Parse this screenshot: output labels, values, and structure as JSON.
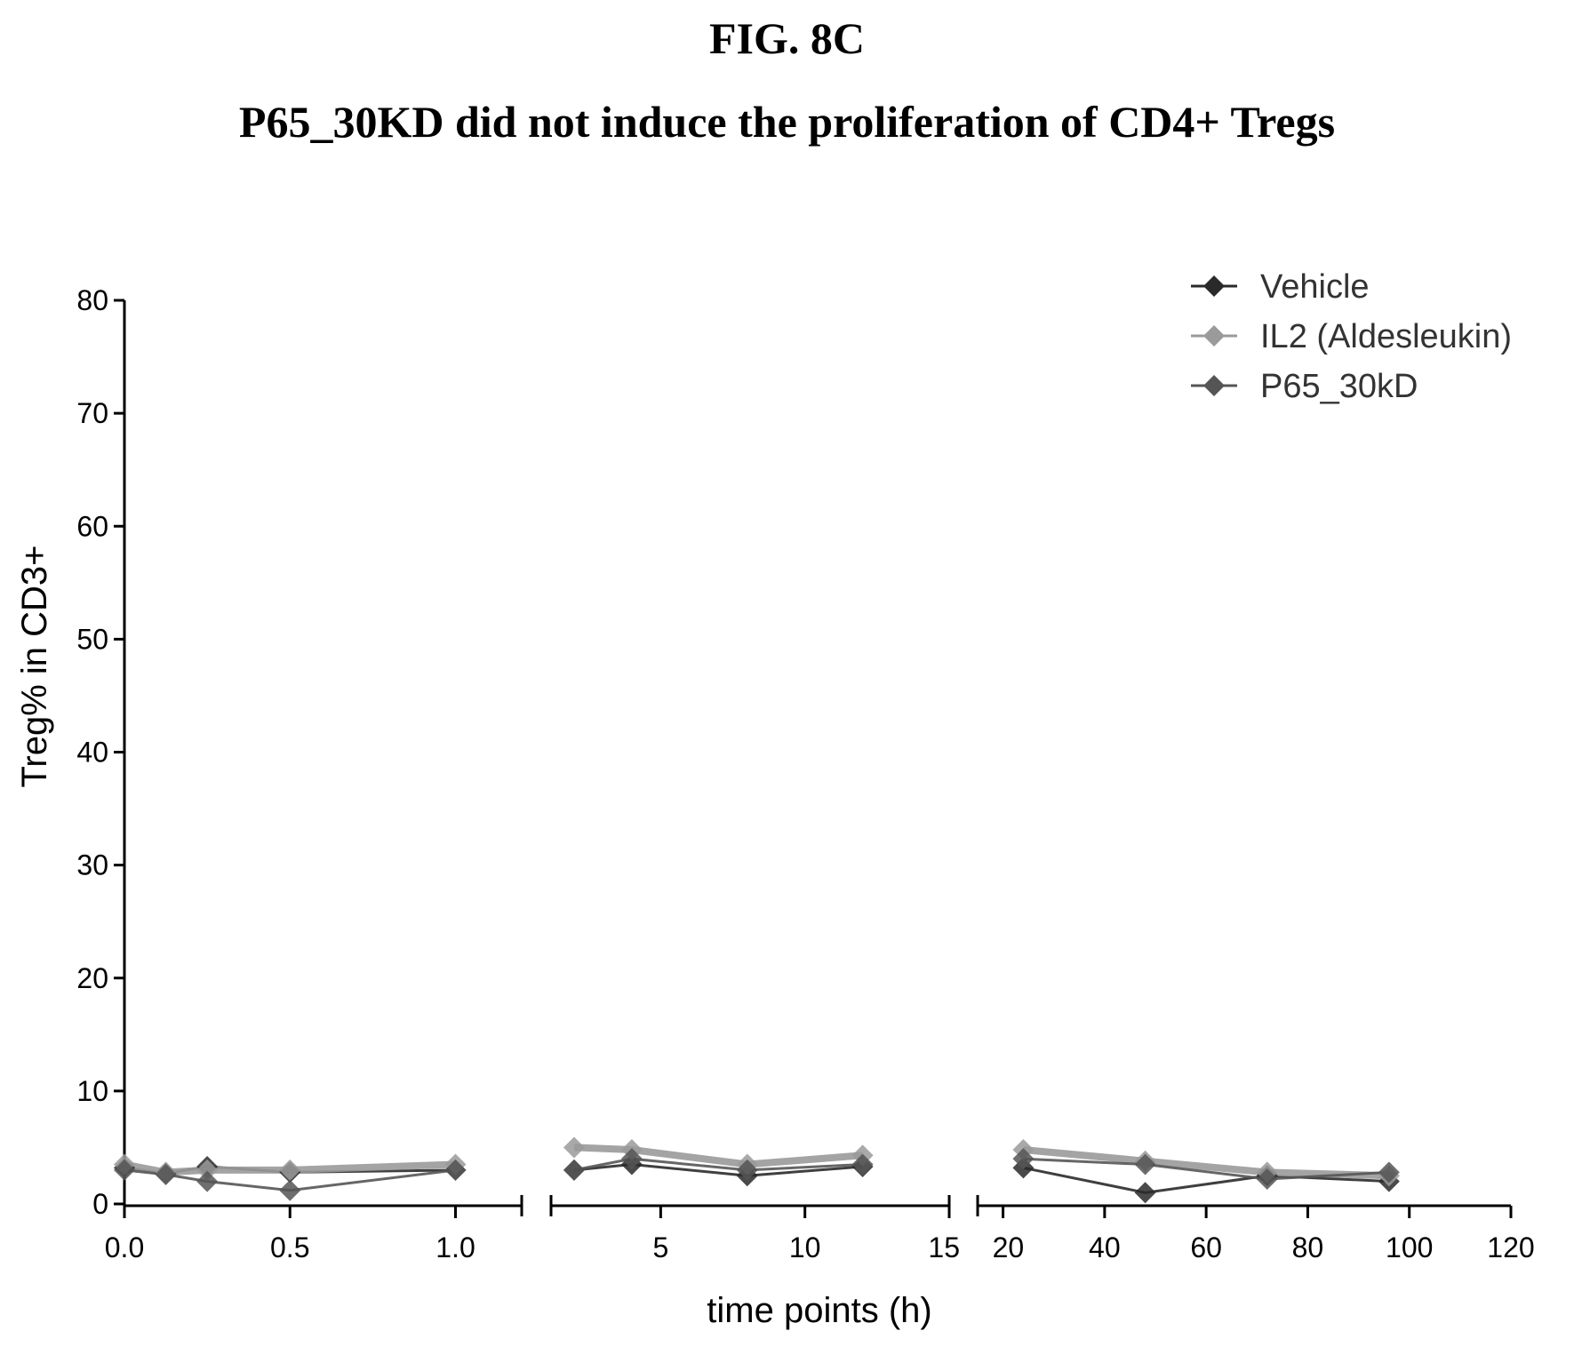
{
  "figure": {
    "label": "FIG. 8C",
    "title": "P65_30KD did not induce the proliferation of CD4+ Tregs"
  },
  "colors": {
    "Vehicle": "#2a2a2a",
    "IL2 (Aldesleukin)": "#9a9a9a",
    "P65_30kD": "#555555"
  },
  "chart_data": {
    "type": "line",
    "title": "",
    "xlabel": "time points (h)",
    "ylabel": "Treg% in CD3+",
    "ylim": [
      0,
      80
    ],
    "yticks": [
      0,
      10,
      20,
      30,
      40,
      50,
      60,
      70,
      80
    ],
    "x_axis": "segmented (broken axis)",
    "x_segments": [
      {
        "range": [
          0,
          1.2
        ],
        "ticks": [
          0.0,
          0.5,
          1.0
        ],
        "tick_labels": [
          "0.0",
          "0.5",
          "1.0"
        ]
      },
      {
        "range": [
          1.2,
          15
        ],
        "ticks": [
          5,
          10,
          15
        ],
        "tick_labels": [
          "5",
          "10",
          "15"
        ]
      },
      {
        "range": [
          15,
          120
        ],
        "ticks": [
          20,
          40,
          60,
          80,
          100,
          120
        ],
        "tick_labels": [
          "20",
          "40",
          "60",
          "80",
          "100",
          "120"
        ]
      }
    ],
    "legend_position": "top-right",
    "series": [
      {
        "name": "Vehicle",
        "segments": [
          [
            [
              0.0,
              3.2
            ],
            [
              0.125,
              2.7
            ],
            [
              0.25,
              3.3
            ],
            [
              0.5,
              2.8
            ],
            [
              1.0,
              3.0
            ]
          ],
          [
            [
              2,
              3.0
            ],
            [
              4,
              3.5
            ],
            [
              8,
              2.5
            ],
            [
              12,
              3.3
            ]
          ],
          [
            [
              24,
              3.2
            ],
            [
              48,
              1.0
            ],
            [
              72,
              2.5
            ],
            [
              96,
              2.0
            ]
          ]
        ]
      },
      {
        "name": "IL2 (Aldesleukin)",
        "segments": [
          [
            [
              0.0,
              3.5
            ],
            [
              0.125,
              2.8
            ],
            [
              0.25,
              3.0
            ],
            [
              0.5,
              3.0
            ],
            [
              1.0,
              3.5
            ]
          ],
          [
            [
              2,
              5.0
            ],
            [
              4,
              4.8
            ],
            [
              8,
              3.5
            ],
            [
              12,
              4.3
            ]
          ],
          [
            [
              24,
              4.8
            ],
            [
              48,
              3.8
            ],
            [
              72,
              2.8
            ],
            [
              96,
              2.5
            ]
          ]
        ]
      },
      {
        "name": "P65_30kD",
        "segments": [
          [
            [
              0.0,
              3.0
            ],
            [
              0.125,
              2.6
            ],
            [
              0.25,
              2.0
            ],
            [
              0.5,
              1.2
            ],
            [
              1.0,
              3.0
            ]
          ],
          [
            [
              2,
              3.0
            ],
            [
              4,
              4.0
            ],
            [
              8,
              3.0
            ],
            [
              12,
              3.5
            ]
          ],
          [
            [
              24,
              4.0
            ],
            [
              48,
              3.5
            ],
            [
              72,
              2.2
            ],
            [
              96,
              2.8
            ]
          ]
        ]
      }
    ]
  }
}
